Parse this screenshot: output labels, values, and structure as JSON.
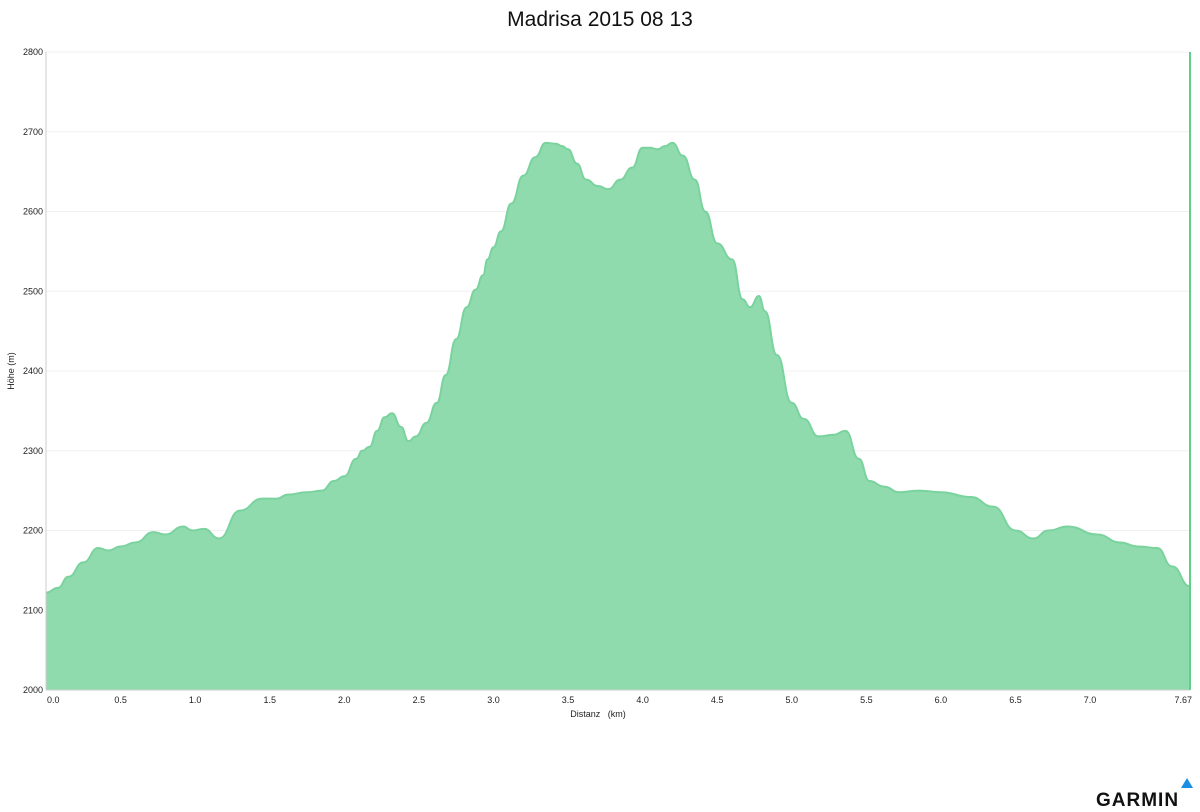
{
  "brand": {
    "logo_text": "GARMIN",
    "accent_color": "#1a8fe3"
  },
  "chart_data": {
    "type": "area",
    "title": "Madrisa 2015 08 13",
    "xlabel": "Distanz   (km)",
    "ylabel": "Höhe (m)",
    "xlim": [
      0,
      7.67
    ],
    "ylim": [
      2000,
      2800
    ],
    "x_ticks": [
      "0.0",
      "0.5",
      "1.0",
      "1.5",
      "2.0",
      "2.5",
      "3.0",
      "3.5",
      "4.0",
      "4.5",
      "5.0",
      "5.5",
      "6.0",
      "6.5",
      "7.0",
      "7.67"
    ],
    "y_ticks": [
      "2000",
      "2100",
      "2200",
      "2300",
      "2400",
      "2500",
      "2600",
      "2700",
      "2800"
    ],
    "grid": true,
    "legend": "none",
    "fill_color": "#90dbae",
    "line_color": "#7ad39e",
    "series": [
      {
        "x": [
          0.0,
          0.08,
          0.15,
          0.25,
          0.35,
          0.42,
          0.5,
          0.6,
          0.72,
          0.8,
          0.92,
          0.98,
          1.06,
          1.16,
          1.3,
          1.45,
          1.55,
          1.62,
          1.75,
          1.85,
          1.93,
          2.0,
          2.08,
          2.12,
          2.17,
          2.22,
          2.27,
          2.32,
          2.38,
          2.43,
          2.48,
          2.55,
          2.62,
          2.68,
          2.75,
          2.82,
          2.88,
          2.93,
          2.96,
          3.0,
          3.05,
          3.12,
          3.2,
          3.28,
          3.35,
          3.42,
          3.46,
          3.5,
          3.56,
          3.62,
          3.7,
          3.77,
          3.85,
          3.93,
          4.0,
          4.05,
          4.1,
          4.15,
          4.2,
          4.27,
          4.35,
          4.42,
          4.5,
          4.6,
          4.67,
          4.72,
          4.78,
          4.82,
          4.9,
          5.0,
          5.08,
          5.18,
          5.28,
          5.36,
          5.45,
          5.52,
          5.62,
          5.72,
          5.85,
          6.0,
          6.2,
          6.35,
          6.5,
          6.62,
          6.72,
          6.85,
          7.05,
          7.2,
          7.32,
          7.45,
          7.55,
          7.67
        ],
        "values": [
          2122,
          2128,
          2142,
          2160,
          2178,
          2175,
          2180,
          2185,
          2198,
          2195,
          2205,
          2200,
          2202,
          2190,
          2225,
          2240,
          2240,
          2245,
          2248,
          2250,
          2262,
          2268,
          2290,
          2300,
          2305,
          2325,
          2342,
          2347,
          2330,
          2312,
          2318,
          2335,
          2360,
          2395,
          2440,
          2480,
          2502,
          2520,
          2540,
          2555,
          2575,
          2610,
          2645,
          2668,
          2686,
          2685,
          2682,
          2678,
          2660,
          2640,
          2632,
          2628,
          2640,
          2655,
          2680,
          2680,
          2678,
          2682,
          2686,
          2670,
          2640,
          2600,
          2560,
          2540,
          2490,
          2480,
          2494,
          2475,
          2420,
          2360,
          2340,
          2318,
          2320,
          2325,
          2290,
          2262,
          2255,
          2248,
          2250,
          2248,
          2242,
          2230,
          2200,
          2190,
          2200,
          2205,
          2195,
          2185,
          2180,
          2178,
          2155,
          2130
        ]
      }
    ]
  }
}
